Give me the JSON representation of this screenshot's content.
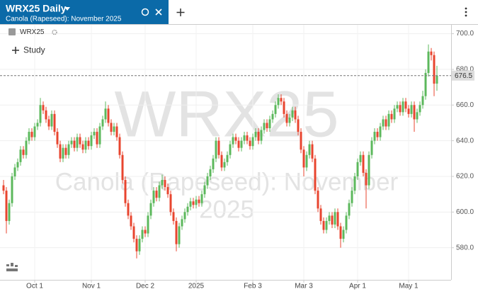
{
  "header": {
    "title": "WRX25 Daily",
    "subtitle": "Canola (Rapeseed): November 2025"
  },
  "legend_symbol": "WRX25",
  "study_button": "Study",
  "chart_data": {
    "type": "candlestick",
    "watermark": {
      "symbol": "WRX25",
      "name_lines": [
        "Canola (Rapeseed): November",
        "2025"
      ]
    },
    "up_color": "#5cb85c",
    "down_color": "#e8452f",
    "ylim": [
      562,
      705
    ],
    "yticks": [
      {
        "value": 700,
        "label": "700.0"
      },
      {
        "value": 680,
        "label": "680.0"
      },
      {
        "value": 660,
        "label": "660.0"
      },
      {
        "value": 640,
        "label": "640.0"
      },
      {
        "value": 620,
        "label": "620.0"
      },
      {
        "value": 600,
        "label": "600.0"
      },
      {
        "value": 580,
        "label": "580.0"
      }
    ],
    "xticks": [
      {
        "value": 11,
        "label": "Oct 1"
      },
      {
        "value": 31,
        "label": "Nov 1"
      },
      {
        "value": 50,
        "label": "Dec 2"
      },
      {
        "value": 68,
        "label": "2025"
      },
      {
        "value": 88,
        "label": "Feb 3"
      },
      {
        "value": 106,
        "label": "Mar 3"
      },
      {
        "value": 125,
        "label": "Apr 1"
      },
      {
        "value": 143,
        "label": "May 1"
      }
    ],
    "grid": true,
    "current_price": 676.5,
    "candles": [
      [
        615,
        618,
        610,
        612
      ],
      [
        612,
        614,
        588,
        595
      ],
      [
        595,
        607,
        593,
        605
      ],
      [
        605,
        622,
        603,
        620
      ],
      [
        620,
        627,
        618,
        625
      ],
      [
        625,
        630,
        623,
        628
      ],
      [
        628,
        637,
        626,
        635
      ],
      [
        635,
        637,
        630,
        632
      ],
      [
        632,
        642,
        630,
        640
      ],
      [
        640,
        647,
        638,
        645
      ],
      [
        645,
        647,
        640,
        642
      ],
      [
        642,
        650,
        640,
        648
      ],
      [
        648,
        652,
        646,
        650
      ],
      [
        650,
        664,
        648,
        660
      ],
      [
        660,
        662,
        655,
        657
      ],
      [
        657,
        659,
        650,
        652
      ],
      [
        652,
        654,
        646,
        648
      ],
      [
        648,
        657,
        646,
        655
      ],
      [
        655,
        657,
        643,
        645
      ],
      [
        645,
        647,
        636,
        638
      ],
      [
        638,
        640,
        628,
        630
      ],
      [
        630,
        638,
        628,
        636
      ],
      [
        636,
        638,
        630,
        632
      ],
      [
        632,
        640,
        630,
        638
      ],
      [
        638,
        642,
        636,
        640
      ],
      [
        640,
        642,
        634,
        636
      ],
      [
        636,
        644,
        634,
        642
      ],
      [
        642,
        644,
        636,
        638
      ],
      [
        638,
        640,
        633,
        635
      ],
      [
        635,
        642,
        633,
        640
      ],
      [
        640,
        642,
        635,
        637
      ],
      [
        637,
        645,
        635,
        643
      ],
      [
        643,
        647,
        641,
        645
      ],
      [
        645,
        647,
        636,
        638
      ],
      [
        638,
        650,
        636,
        648
      ],
      [
        648,
        654,
        646,
        652
      ],
      [
        652,
        662,
        650,
        658
      ],
      [
        658,
        660,
        648,
        650
      ],
      [
        650,
        652,
        643,
        645
      ],
      [
        645,
        650,
        643,
        648
      ],
      [
        648,
        650,
        640,
        642
      ],
      [
        642,
        644,
        630,
        632
      ],
      [
        632,
        634,
        616,
        618
      ],
      [
        618,
        620,
        603,
        605
      ],
      [
        605,
        607,
        596,
        598
      ],
      [
        598,
        600,
        590,
        592
      ],
      [
        592,
        594,
        583,
        585
      ],
      [
        585,
        587,
        574,
        578
      ],
      [
        578,
        587,
        576,
        585
      ],
      [
        585,
        592,
        583,
        590
      ],
      [
        590,
        592,
        586,
        588
      ],
      [
        588,
        600,
        586,
        598
      ],
      [
        598,
        607,
        596,
        605
      ],
      [
        605,
        614,
        603,
        612
      ],
      [
        612,
        614,
        606,
        608
      ],
      [
        608,
        617,
        606,
        615
      ],
      [
        615,
        621,
        613,
        618
      ],
      [
        618,
        620,
        612,
        614
      ],
      [
        614,
        616,
        608,
        610
      ],
      [
        610,
        612,
        598,
        600
      ],
      [
        600,
        602,
        593,
        595
      ],
      [
        595,
        597,
        578,
        582
      ],
      [
        582,
        594,
        580,
        592
      ],
      [
        592,
        598,
        590,
        596
      ],
      [
        596,
        602,
        594,
        600
      ],
      [
        600,
        605,
        598,
        603
      ],
      [
        603,
        608,
        601,
        606
      ],
      [
        606,
        608,
        602,
        604
      ],
      [
        604,
        609,
        602,
        607
      ],
      [
        607,
        609,
        603,
        605
      ],
      [
        605,
        612,
        603,
        610
      ],
      [
        610,
        617,
        608,
        615
      ],
      [
        615,
        622,
        613,
        620
      ],
      [
        620,
        626,
        618,
        624
      ],
      [
        624,
        632,
        622,
        630
      ],
      [
        630,
        642,
        628,
        640
      ],
      [
        640,
        642,
        630,
        632
      ],
      [
        632,
        634,
        623,
        625
      ],
      [
        625,
        630,
        623,
        628
      ],
      [
        628,
        634,
        626,
        632
      ],
      [
        632,
        640,
        630,
        638
      ],
      [
        638,
        644,
        636,
        642
      ],
      [
        642,
        644,
        638,
        640
      ],
      [
        640,
        642,
        634,
        636
      ],
      [
        636,
        642,
        634,
        640
      ],
      [
        640,
        645,
        638,
        643
      ],
      [
        643,
        645,
        638,
        640
      ],
      [
        640,
        642,
        635,
        637
      ],
      [
        637,
        644,
        635,
        642
      ],
      [
        642,
        647,
        640,
        645
      ],
      [
        645,
        647,
        638,
        640
      ],
      [
        640,
        648,
        638,
        646
      ],
      [
        646,
        652,
        644,
        650
      ],
      [
        650,
        652,
        645,
        647
      ],
      [
        647,
        654,
        645,
        652
      ],
      [
        652,
        657,
        650,
        655
      ],
      [
        655,
        662,
        653,
        660
      ],
      [
        660,
        666,
        658,
        664
      ],
      [
        664,
        666,
        660,
        662
      ],
      [
        662,
        664,
        653,
        655
      ],
      [
        655,
        657,
        648,
        650
      ],
      [
        650,
        655,
        648,
        653
      ],
      [
        653,
        659,
        651,
        657
      ],
      [
        657,
        659,
        650,
        652
      ],
      [
        652,
        654,
        643,
        645
      ],
      [
        645,
        647,
        633,
        635
      ],
      [
        635,
        637,
        620,
        625
      ],
      [
        625,
        634,
        623,
        632
      ],
      [
        632,
        640,
        630,
        638
      ],
      [
        638,
        640,
        628,
        630
      ],
      [
        630,
        632,
        610,
        612
      ],
      [
        612,
        614,
        600,
        602
      ],
      [
        602,
        604,
        593,
        595
      ],
      [
        595,
        597,
        588,
        590
      ],
      [
        590,
        597,
        588,
        595
      ],
      [
        595,
        600,
        593,
        598
      ],
      [
        598,
        600,
        591,
        593
      ],
      [
        593,
        602,
        591,
        600
      ],
      [
        600,
        602,
        590,
        592
      ],
      [
        592,
        594,
        580,
        585
      ],
      [
        585,
        592,
        583,
        590
      ],
      [
        590,
        600,
        588,
        598
      ],
      [
        598,
        607,
        596,
        605
      ],
      [
        605,
        614,
        603,
        612
      ],
      [
        612,
        622,
        610,
        620
      ],
      [
        620,
        630,
        618,
        628
      ],
      [
        628,
        634,
        626,
        632
      ],
      [
        632,
        634,
        620,
        622
      ],
      [
        622,
        624,
        602,
        615
      ],
      [
        615,
        634,
        613,
        632
      ],
      [
        632,
        642,
        630,
        640
      ],
      [
        640,
        647,
        638,
        645
      ],
      [
        645,
        647,
        640,
        642
      ],
      [
        642,
        650,
        640,
        648
      ],
      [
        648,
        654,
        646,
        652
      ],
      [
        652,
        654,
        646,
        648
      ],
      [
        648,
        657,
        646,
        655
      ],
      [
        655,
        657,
        650,
        652
      ],
      [
        652,
        660,
        650,
        658
      ],
      [
        658,
        662,
        656,
        660
      ],
      [
        660,
        662,
        654,
        656
      ],
      [
        656,
        664,
        654,
        662
      ],
      [
        662,
        664,
        656,
        658
      ],
      [
        658,
        660,
        653,
        655
      ],
      [
        655,
        662,
        653,
        660
      ],
      [
        660,
        662,
        645,
        652
      ],
      [
        652,
        658,
        650,
        656
      ],
      [
        656,
        662,
        654,
        660
      ],
      [
        660,
        668,
        658,
        665
      ],
      [
        665,
        680,
        663,
        678
      ],
      [
        678,
        694,
        676,
        690
      ],
      [
        690,
        692,
        685,
        688
      ],
      [
        688,
        690,
        665,
        672
      ],
      [
        672,
        682,
        668,
        676.5
      ]
    ]
  }
}
